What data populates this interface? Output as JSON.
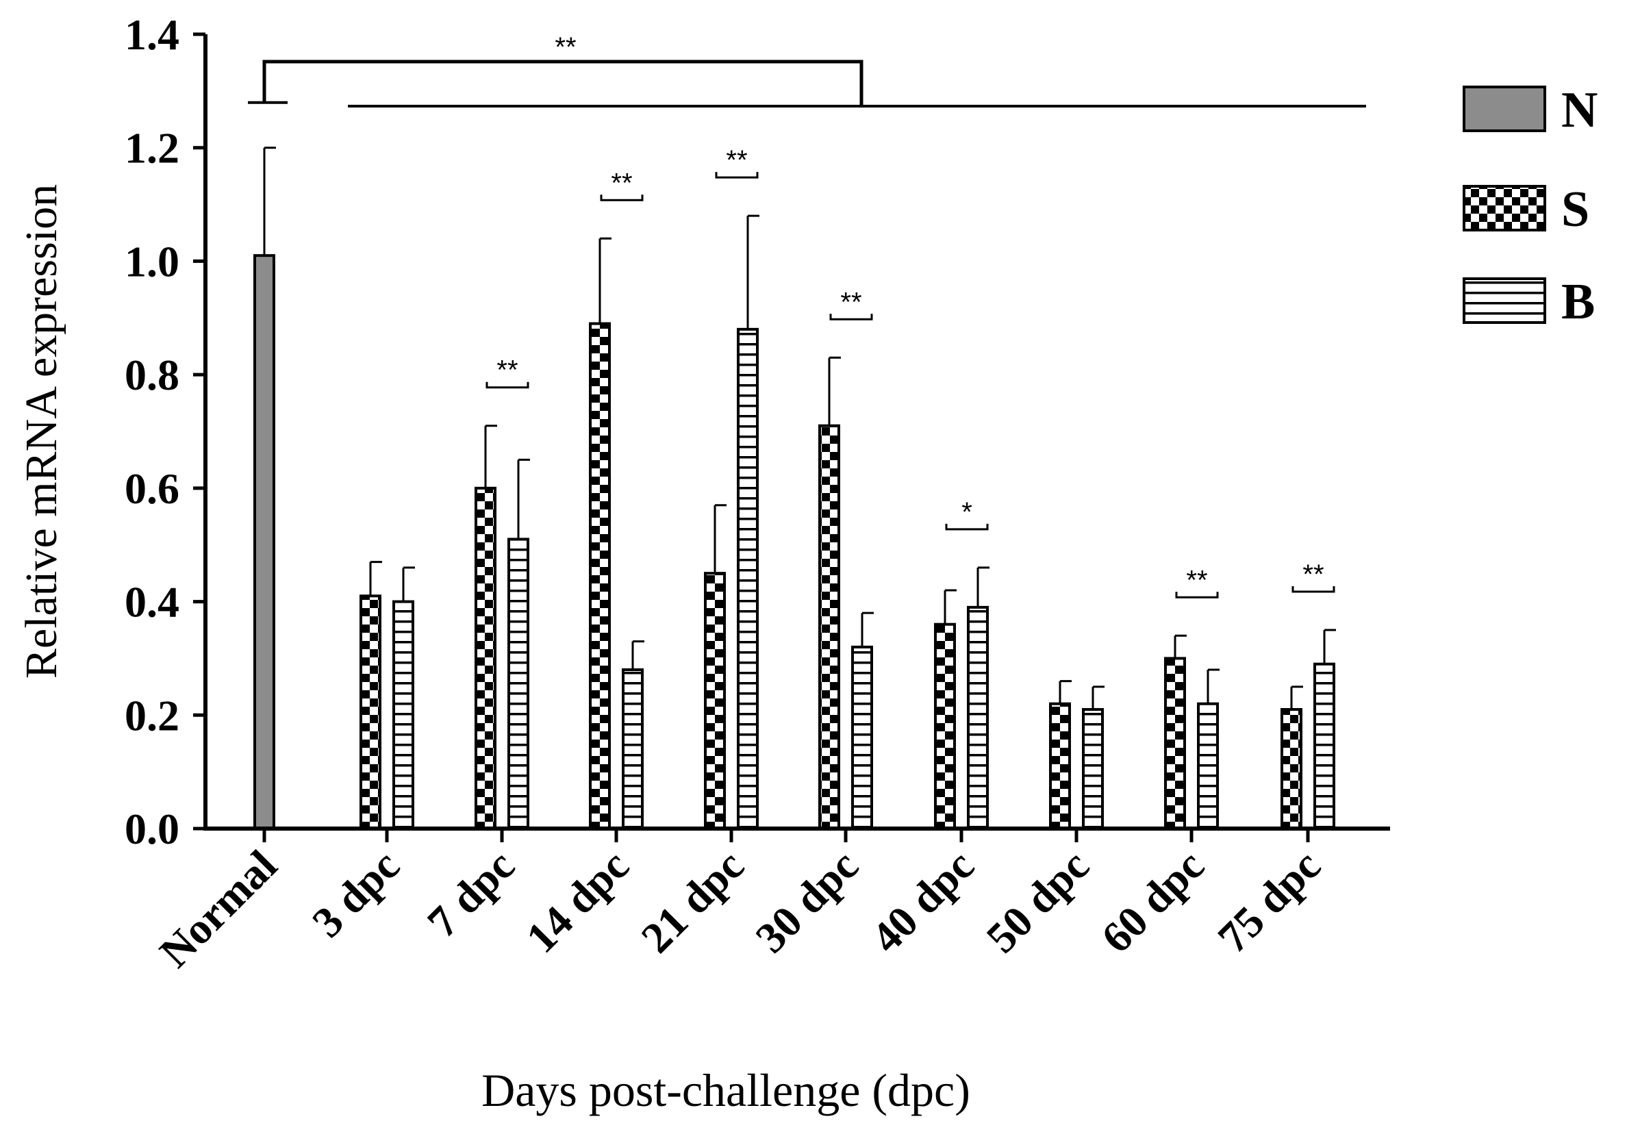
{
  "chart_data": {
    "type": "bar",
    "xlabel": "Days post-challenge (dpc)",
    "ylabel": "Relative mRNA expression",
    "ylim": [
      0,
      1.4
    ],
    "yticks": [
      "0.0",
      "0.2",
      "0.4",
      "0.6",
      "0.8",
      "1.0",
      "1.2",
      "1.4"
    ],
    "categories": [
      "Normal",
      "3 dpc",
      "7 dpc",
      "14 dpc",
      "21 dpc",
      "30 dpc",
      "40 dpc",
      "50 dpc",
      "60 dpc",
      "75 dpc"
    ],
    "series": [
      {
        "name": "N",
        "pattern": "solid-gray",
        "color": "#8c8c8c",
        "values": [
          1.01,
          null,
          null,
          null,
          null,
          null,
          null,
          null,
          null,
          null
        ],
        "errors": [
          0.19,
          null,
          null,
          null,
          null,
          null,
          null,
          null,
          null,
          null
        ]
      },
      {
        "name": "S",
        "pattern": "checkerboard",
        "color": "#000000",
        "values": [
          null,
          0.41,
          0.6,
          0.89,
          0.45,
          0.71,
          0.36,
          0.22,
          0.3,
          0.21
        ],
        "errors": [
          null,
          0.06,
          0.11,
          0.15,
          0.12,
          0.12,
          0.06,
          0.04,
          0.04,
          0.04
        ]
      },
      {
        "name": "B",
        "pattern": "horizontal-stripes",
        "color": "#000000",
        "values": [
          null,
          0.4,
          0.51,
          0.28,
          0.88,
          0.32,
          0.39,
          0.21,
          0.22,
          0.29
        ],
        "errors": [
          null,
          0.06,
          0.14,
          0.05,
          0.2,
          0.06,
          0.07,
          0.04,
          0.06,
          0.06
        ]
      }
    ],
    "significance": {
      "overall": {
        "label": "**",
        "compare": "Normal vs. all dpc groups"
      },
      "pairs": [
        {
          "category": "7 dpc",
          "label": "**"
        },
        {
          "category": "14 dpc",
          "label": "**"
        },
        {
          "category": "21 dpc",
          "label": "**"
        },
        {
          "category": "30 dpc",
          "label": "**"
        },
        {
          "category": "40 dpc",
          "label": "*"
        },
        {
          "category": "60 dpc",
          "label": "**"
        },
        {
          "category": "75 dpc",
          "label": "**"
        }
      ]
    },
    "legend": {
      "placement": "right",
      "entries": [
        "N",
        "S",
        "B"
      ]
    },
    "grid": false
  }
}
